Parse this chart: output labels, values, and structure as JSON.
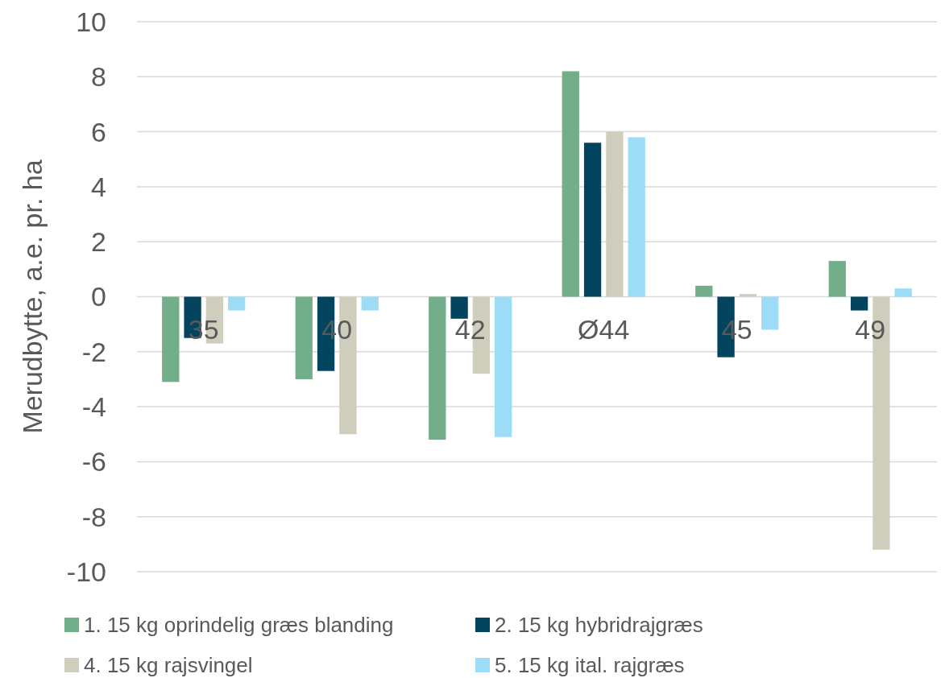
{
  "chart_data": {
    "type": "bar",
    "ylabel": "Merudbytte, a.e. pr. ha",
    "categories": [
      "35",
      "40",
      "42",
      "Ø44",
      "45",
      "49"
    ],
    "series": [
      {
        "name": "1. 15 kg oprindelig græs blanding",
        "color": "#72ae89",
        "values": [
          -3.1,
          -3.0,
          -5.2,
          8.2,
          0.4,
          1.3
        ]
      },
      {
        "name": "2. 15 kg hybridrajgræs",
        "color": "#03445e",
        "values": [
          -1.5,
          -2.7,
          -0.8,
          5.6,
          -2.2,
          -0.5
        ]
      },
      {
        "name": "4. 15 kg rajsvingel",
        "color": "#cfcdbb",
        "values": [
          -1.7,
          -5.0,
          -2.8,
          6.0,
          0.1,
          -9.2
        ]
      },
      {
        "name": "5. 15 kg ital. rajgræs",
        "color": "#9ddcf7",
        "values": [
          -0.5,
          -0.5,
          -5.1,
          5.8,
          -1.2,
          0.3
        ]
      }
    ],
    "ylim": [
      -10,
      10
    ],
    "yticks": [
      -10,
      -8,
      -6,
      -4,
      -2,
      0,
      2,
      4,
      6,
      8,
      10
    ],
    "grid": "y",
    "legend": "bottom"
  }
}
